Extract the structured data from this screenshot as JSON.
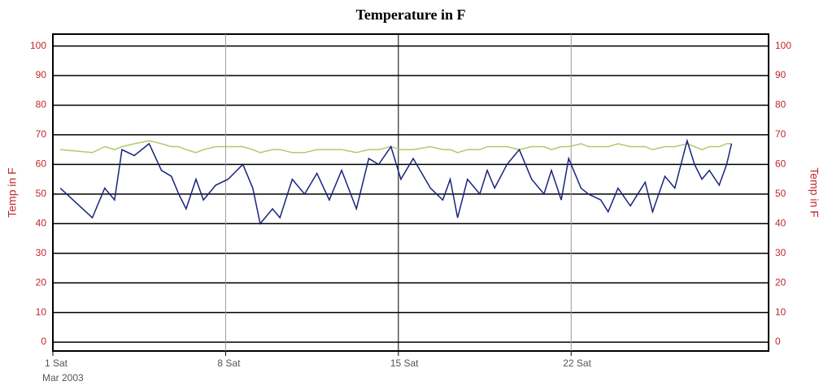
{
  "chart_data": {
    "type": "line",
    "title": "Temperature in F",
    "ylabel": "Temp in F",
    "date_caption": "Mar 2003",
    "x": [
      1.3,
      2.6,
      3.1,
      3.5,
      3.8,
      4.3,
      4.9,
      5.4,
      5.8,
      6.1,
      6.4,
      6.8,
      7.1,
      7.6,
      8.1,
      8.7,
      9.1,
      9.4,
      9.9,
      10.2,
      10.7,
      11.2,
      11.7,
      12.2,
      12.7,
      13.3,
      13.8,
      14.2,
      14.7,
      15.1,
      15.6,
      16.3,
      16.8,
      17.1,
      17.4,
      17.8,
      18.3,
      18.6,
      18.9,
      19.4,
      19.9,
      20.4,
      20.9,
      21.2,
      21.6,
      21.9,
      22.4,
      22.7,
      23.2,
      23.5,
      23.9,
      24.4,
      24.7,
      25.0,
      25.3,
      25.8,
      26.2,
      26.7,
      27.0,
      27.3,
      27.6,
      28.0,
      28.3,
      28.5
    ],
    "series": [
      {
        "color": "#1a237e",
        "values": [
          52,
          42,
          52,
          48,
          65,
          63,
          67,
          58,
          56,
          50,
          45,
          55,
          48,
          53,
          55,
          60,
          52,
          40,
          45,
          42,
          55,
          50,
          57,
          48,
          58,
          45,
          62,
          60,
          66,
          55,
          62,
          52,
          48,
          55,
          42,
          55,
          50,
          58,
          52,
          60,
          65,
          55,
          50,
          58,
          48,
          62,
          52,
          50,
          48,
          44,
          52,
          46,
          50,
          54,
          44,
          56,
          52,
          68,
          60,
          55,
          58,
          53,
          60,
          67
        ]
      },
      {
        "color": "#b5c86a",
        "values": [
          65,
          64,
          66,
          65,
          66,
          67,
          68,
          67,
          66,
          66,
          65,
          64,
          65,
          66,
          66,
          66,
          65,
          64,
          65,
          65,
          64,
          64,
          65,
          65,
          65,
          64,
          65,
          65,
          66,
          65,
          65,
          66,
          65,
          65,
          64,
          65,
          65,
          66,
          66,
          66,
          65,
          66,
          66,
          65,
          66,
          66,
          67,
          66,
          66,
          66,
          67,
          66,
          66,
          66,
          65,
          66,
          66,
          67,
          66,
          65,
          66,
          66,
          67,
          67
        ]
      }
    ],
    "xlim": [
      1,
      30
    ],
    "xticks": [
      {
        "value": 1,
        "label": "1 Sat"
      },
      {
        "value": 8,
        "label": "8 Sat"
      },
      {
        "value": 15,
        "label": "15 Sat"
      },
      {
        "value": 22,
        "label": "22 Sat"
      }
    ],
    "ylim": [
      -3,
      104
    ],
    "yticks": [
      0,
      10,
      20,
      30,
      40,
      50,
      60,
      70,
      80,
      90,
      100
    ],
    "grid": true
  }
}
